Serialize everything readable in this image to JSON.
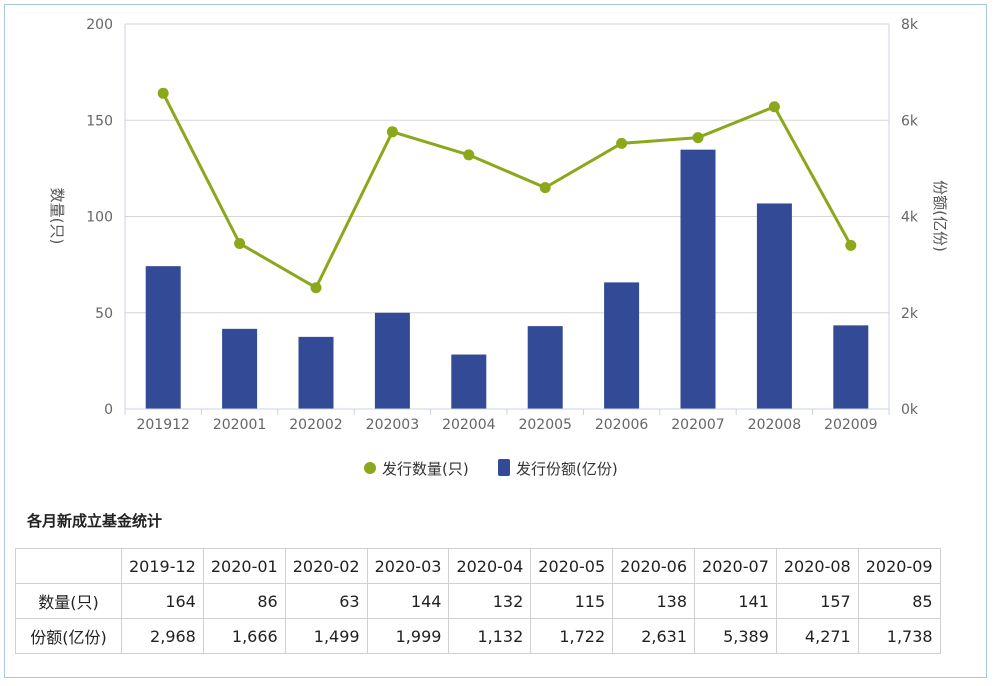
{
  "chart_data": {
    "type": "bar+line",
    "categories": [
      "201912",
      "202001",
      "202002",
      "202003",
      "202004",
      "202005",
      "202006",
      "202007",
      "202008",
      "202009"
    ],
    "series": [
      {
        "name": "发行数量(只)",
        "type": "line",
        "axis": "left",
        "color": "#8aa81a",
        "values": [
          164,
          86,
          63,
          144,
          132,
          115,
          138,
          141,
          157,
          85
        ]
      },
      {
        "name": "发行份额(亿份)",
        "type": "bar",
        "axis": "right",
        "color": "#334a96",
        "values": [
          2968,
          1666,
          1499,
          1999,
          1132,
          1722,
          2631,
          5389,
          4271,
          1738
        ]
      }
    ],
    "ylabel_left": "数量(只)",
    "ylabel_right": "份额(亿份)",
    "ylim_left": [
      0,
      200
    ],
    "ylim_right": [
      0,
      8000
    ],
    "yticks_left": [
      "0",
      "50",
      "100",
      "150",
      "200"
    ],
    "yticks_right": [
      "0k",
      "2k",
      "4k",
      "6k",
      "8k"
    ],
    "grid": true,
    "legend_position": "bottom"
  },
  "table": {
    "title": "各月新成立基金统计",
    "corner": "",
    "headers": [
      "2019-12",
      "2020-01",
      "2020-02",
      "2020-03",
      "2020-04",
      "2020-05",
      "2020-06",
      "2020-07",
      "2020-08",
      "2020-09"
    ],
    "rows": [
      {
        "label": "数量(只)",
        "values": [
          "164",
          "86",
          "63",
          "144",
          "132",
          "115",
          "138",
          "141",
          "157",
          "85"
        ]
      },
      {
        "label": "份额(亿份)",
        "values": [
          "2,968",
          "1,666",
          "1,499",
          "1,999",
          "1,132",
          "1,722",
          "2,631",
          "5,389",
          "4,271",
          "1,738"
        ]
      }
    ]
  }
}
